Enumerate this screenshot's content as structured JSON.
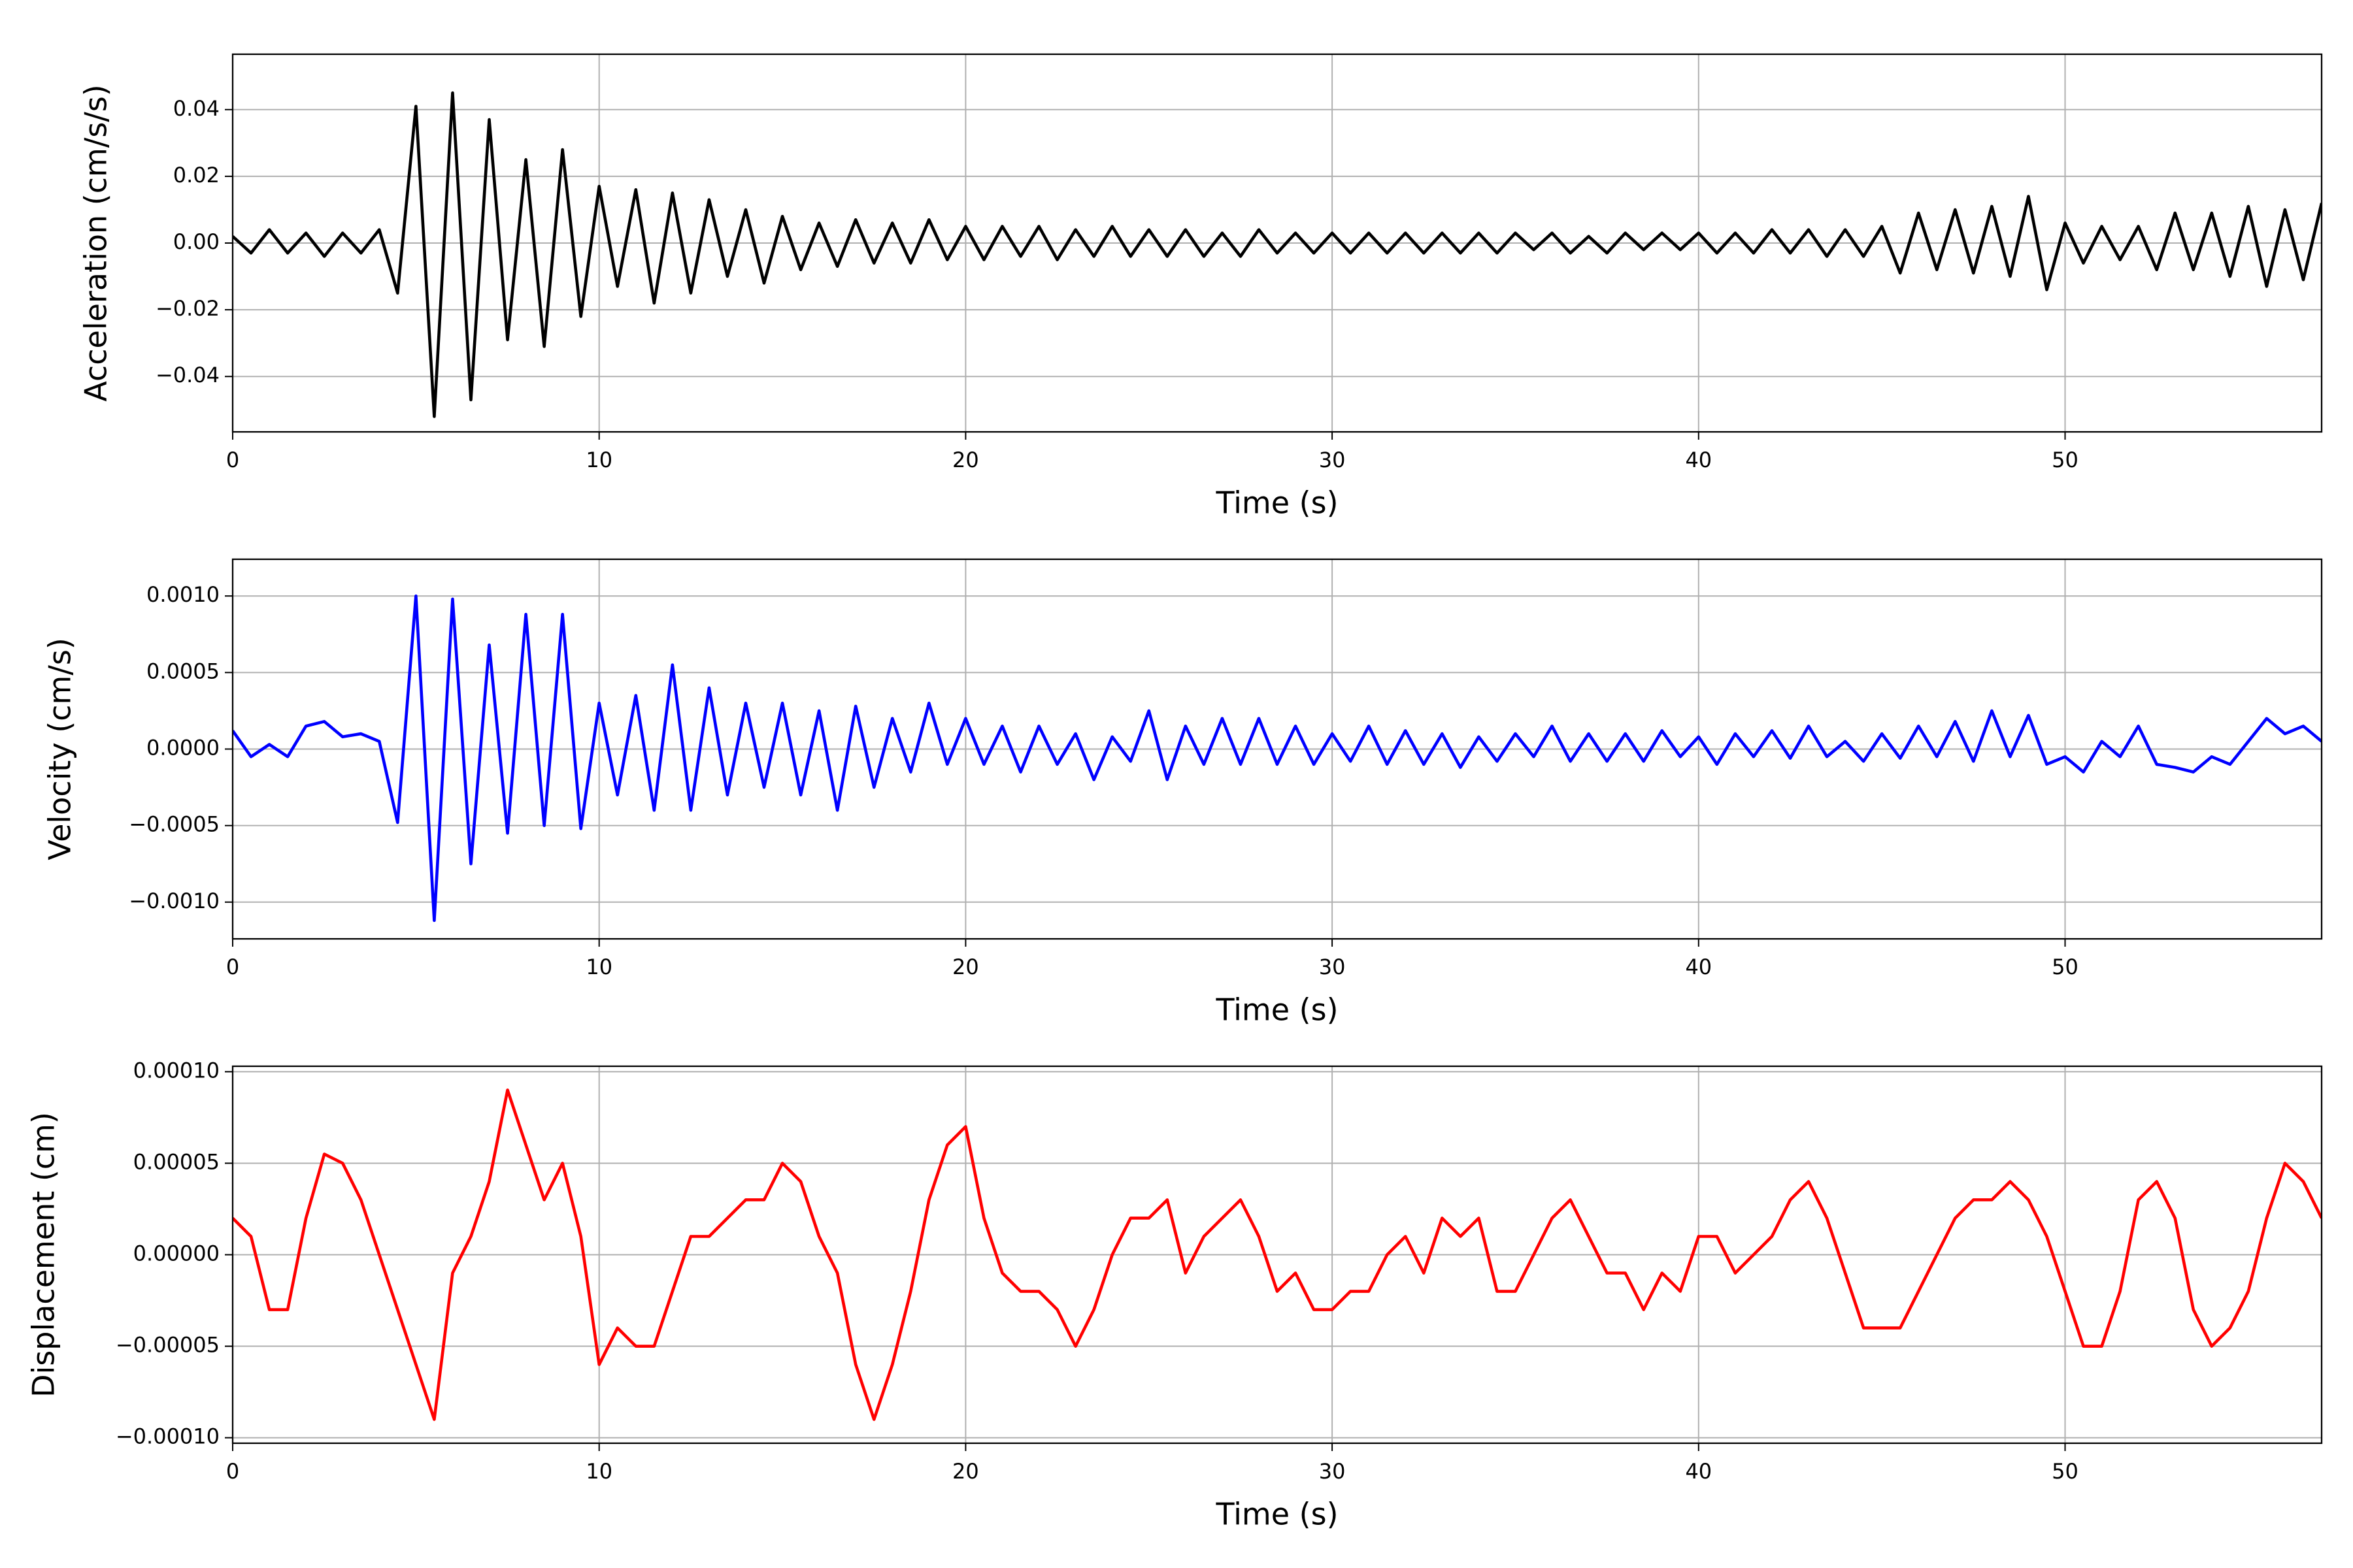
{
  "chart_data": [
    {
      "type": "line",
      "ylabel": "Acceleration (cm/s/s)",
      "xlabel": "Time (s)",
      "color": "#000000",
      "grid": true,
      "xlim": [
        0,
        57
      ],
      "xticks": [
        0,
        10,
        20,
        30,
        40,
        50
      ],
      "ylim": [
        -0.0566,
        0.0566
      ],
      "yticks": [
        {
          "value": -0.04,
          "label": "−0.04"
        },
        {
          "value": -0.02,
          "label": "−0.02"
        },
        {
          "value": 0,
          "label": "0.00"
        },
        0.02,
        0.04
      ],
      "x": [
        0,
        0.5,
        1,
        1.5,
        2,
        2.5,
        3,
        3.5,
        4,
        4.5,
        5,
        5.5,
        6,
        6.5,
        7,
        7.5,
        8,
        8.5,
        9,
        9.5,
        10,
        10.5,
        11,
        11.5,
        12,
        12.5,
        13,
        13.5,
        14,
        14.5,
        15,
        15.5,
        16,
        16.5,
        17,
        17.5,
        18,
        18.5,
        19,
        19.5,
        20,
        20.5,
        21,
        21.5,
        22,
        22.5,
        23,
        23.5,
        24,
        24.5,
        25,
        25.5,
        26,
        26.5,
        27,
        27.5,
        28,
        28.5,
        29,
        29.5,
        30,
        30.5,
        31,
        31.5,
        32,
        32.5,
        33,
        33.5,
        34,
        34.5,
        35,
        35.5,
        36,
        36.5,
        37,
        37.5,
        38,
        38.5,
        39,
        39.5,
        40,
        40.5,
        41,
        41.5,
        42,
        42.5,
        43,
        43.5,
        44,
        44.5,
        45,
        45.5,
        46,
        46.5,
        47,
        47.5,
        48,
        48.5,
        49,
        49.5,
        50,
        50.5,
        51,
        51.5,
        52,
        52.5,
        53,
        53.5,
        54,
        54.5,
        55,
        55.5,
        56,
        56.5,
        57
      ],
      "values": [
        0.002,
        -0.003,
        0.004,
        -0.003,
        0.003,
        -0.004,
        0.003,
        -0.003,
        0.004,
        -0.015,
        0.041,
        -0.052,
        0.045,
        -0.047,
        0.037,
        -0.029,
        0.025,
        -0.031,
        0.028,
        -0.022,
        0.017,
        -0.013,
        0.016,
        -0.018,
        0.015,
        -0.015,
        0.013,
        -0.01,
        0.01,
        -0.012,
        0.008,
        -0.008,
        0.006,
        -0.007,
        0.007,
        -0.006,
        0.006,
        -0.006,
        0.007,
        -0.005,
        0.005,
        -0.005,
        0.005,
        -0.004,
        0.005,
        -0.005,
        0.004,
        -0.004,
        0.005,
        -0.004,
        0.004,
        -0.004,
        0.004,
        -0.004,
        0.003,
        -0.004,
        0.004,
        -0.003,
        0.003,
        -0.003,
        0.003,
        -0.003,
        0.003,
        -0.003,
        0.003,
        -0.003,
        0.003,
        -0.003,
        0.003,
        -0.003,
        0.003,
        -0.002,
        0.003,
        -0.003,
        0.002,
        -0.003,
        0.003,
        -0.002,
        0.003,
        -0.002,
        0.003,
        -0.003,
        0.003,
        -0.003,
        0.004,
        -0.003,
        0.004,
        -0.004,
        0.004,
        -0.004,
        0.005,
        -0.009,
        0.009,
        -0.008,
        0.01,
        -0.009,
        0.011,
        -0.01,
        0.014,
        -0.014,
        0.006,
        -0.006,
        0.005,
        -0.005,
        0.005,
        -0.008,
        0.009,
        -0.008,
        0.009,
        -0.01,
        0.011,
        -0.013,
        0.01,
        -0.011,
        0.012
      ]
    },
    {
      "type": "line",
      "ylabel": "Velocity (cm/s)",
      "xlabel": "Time (s)",
      "color": "#0000ff",
      "grid": true,
      "xlim": [
        0,
        57
      ],
      "xticks": [
        0,
        10,
        20,
        30,
        40,
        50
      ],
      "ylim": [
        -0.00124,
        0.00124
      ],
      "yticks": [
        {
          "value": -0.001,
          "label": "−0.0010"
        },
        {
          "value": -0.0005,
          "label": "−0.0005"
        },
        {
          "value": 0,
          "label": "0.0000"
        },
        {
          "value": 0.0005,
          "label": "0.0005"
        },
        {
          "value": 0.001,
          "label": "0.0010"
        }
      ],
      "x": [
        0,
        0.5,
        1,
        1.5,
        2,
        2.5,
        3,
        3.5,
        4,
        4.5,
        5,
        5.5,
        6,
        6.5,
        7,
        7.5,
        8,
        8.5,
        9,
        9.5,
        10,
        10.5,
        11,
        11.5,
        12,
        12.5,
        13,
        13.5,
        14,
        14.5,
        15,
        15.5,
        16,
        16.5,
        17,
        17.5,
        18,
        18.5,
        19,
        19.5,
        20,
        20.5,
        21,
        21.5,
        22,
        22.5,
        23,
        23.5,
        24,
        24.5,
        25,
        25.5,
        26,
        26.5,
        27,
        27.5,
        28,
        28.5,
        29,
        29.5,
        30,
        30.5,
        31,
        31.5,
        32,
        32.5,
        33,
        33.5,
        34,
        34.5,
        35,
        35.5,
        36,
        36.5,
        37,
        37.5,
        38,
        38.5,
        39,
        39.5,
        40,
        40.5,
        41,
        41.5,
        42,
        42.5,
        43,
        43.5,
        44,
        44.5,
        45,
        45.5,
        46,
        46.5,
        47,
        47.5,
        48,
        48.5,
        49,
        49.5,
        50,
        50.5,
        51,
        51.5,
        52,
        52.5,
        53,
        53.5,
        54,
        54.5,
        55,
        55.5,
        56,
        56.5,
        57
      ],
      "values": [
        0.00012,
        -5e-05,
        3e-05,
        -5e-05,
        0.00015,
        0.00018,
        8e-05,
        0.0001,
        5e-05,
        -0.00048,
        0.001,
        -0.00112,
        0.00098,
        -0.00075,
        0.00068,
        -0.00055,
        0.00088,
        -0.0005,
        0.00088,
        -0.00052,
        0.0003,
        -0.0003,
        0.00035,
        -0.0004,
        0.00055,
        -0.0004,
        0.0004,
        -0.0003,
        0.0003,
        -0.00025,
        0.0003,
        -0.0003,
        0.00025,
        -0.0004,
        0.00028,
        -0.00025,
        0.0002,
        -0.00015,
        0.0003,
        -0.0001,
        0.0002,
        -0.0001,
        0.00015,
        -0.00015,
        0.00015,
        -0.0001,
        0.0001,
        -0.0002,
        8e-05,
        -8e-05,
        0.00025,
        -0.0002,
        0.00015,
        -0.0001,
        0.0002,
        -0.0001,
        0.0002,
        -0.0001,
        0.00015,
        -0.0001,
        0.0001,
        -8e-05,
        0.00015,
        -0.0001,
        0.00012,
        -0.0001,
        0.0001,
        -0.00012,
        8e-05,
        -8e-05,
        0.0001,
        -5e-05,
        0.00015,
        -8e-05,
        0.0001,
        -8e-05,
        0.0001,
        -8e-05,
        0.00012,
        -5e-05,
        8e-05,
        -0.0001,
        0.0001,
        -5e-05,
        0.00012,
        -6e-05,
        0.00015,
        -5e-05,
        5e-05,
        -8e-05,
        0.0001,
        -6e-05,
        0.00015,
        -5e-05,
        0.00018,
        -8e-05,
        0.00025,
        -5e-05,
        0.00022,
        -0.0001,
        -5e-05,
        -0.00015,
        5e-05,
        -5e-05,
        0.00015,
        -0.0001,
        -0.00012,
        -0.00015,
        -5e-05,
        -0.0001,
        5e-05,
        0.0002,
        0.0001,
        0.00015,
        5e-05
      ]
    },
    {
      "type": "line",
      "ylabel": "Displacement (cm)",
      "xlabel": "Time (s)",
      "color": "#ff0000",
      "grid": true,
      "xlim": [
        0,
        57
      ],
      "xticks": [
        0,
        10,
        20,
        30,
        40,
        50
      ],
      "ylim": [
        -0.000103,
        0.000103
      ],
      "yticks": [
        {
          "value": -0.0001,
          "label": "−0.00010"
        },
        {
          "value": -5e-05,
          "label": "−0.00005"
        },
        {
          "value": 0,
          "label": "0.00000"
        },
        {
          "value": 5e-05,
          "label": "0.00005"
        },
        {
          "value": 0.0001,
          "label": "0.00010"
        }
      ],
      "x": [
        0,
        0.5,
        1,
        1.5,
        2,
        2.5,
        3,
        3.5,
        4,
        4.5,
        5,
        5.5,
        6,
        6.5,
        7,
        7.5,
        8,
        8.5,
        9,
        9.5,
        10,
        10.5,
        11,
        11.5,
        12,
        12.5,
        13,
        13.5,
        14,
        14.5,
        15,
        15.5,
        16,
        16.5,
        17,
        17.5,
        18,
        18.5,
        19,
        19.5,
        20,
        20.5,
        21,
        21.5,
        22,
        22.5,
        23,
        23.5,
        24,
        24.5,
        25,
        25.5,
        26,
        26.5,
        27,
        27.5,
        28,
        28.5,
        29,
        29.5,
        30,
        30.5,
        31,
        31.5,
        32,
        32.5,
        33,
        33.5,
        34,
        34.5,
        35,
        35.5,
        36,
        36.5,
        37,
        37.5,
        38,
        38.5,
        39,
        39.5,
        40,
        40.5,
        41,
        41.5,
        42,
        42.5,
        43,
        43.5,
        44,
        44.5,
        45,
        45.5,
        46,
        46.5,
        47,
        47.5,
        48,
        48.5,
        49,
        49.5,
        50,
        50.5,
        51,
        51.5,
        52,
        52.5,
        53,
        53.5,
        54,
        54.5,
        55,
        55.5,
        56,
        56.5,
        57
      ],
      "values": [
        2e-05,
        1e-05,
        -3e-05,
        -3e-05,
        2e-05,
        5.5e-05,
        5e-05,
        3e-05,
        0,
        -3e-05,
        -6e-05,
        -9e-05,
        -1e-05,
        1e-05,
        4e-05,
        9e-05,
        6e-05,
        3e-05,
        5e-05,
        1e-05,
        -6e-05,
        -4e-05,
        -5e-05,
        -5e-05,
        -2e-05,
        1e-05,
        1e-05,
        2e-05,
        3e-05,
        3e-05,
        5e-05,
        4e-05,
        1e-05,
        -1e-05,
        -6e-05,
        -9e-05,
        -6e-05,
        -2e-05,
        3e-05,
        6e-05,
        7e-05,
        2e-05,
        -1e-05,
        -2e-05,
        -2e-05,
        -3e-05,
        -5e-05,
        -3e-05,
        0,
        2e-05,
        2e-05,
        3e-05,
        -1e-05,
        1e-05,
        2e-05,
        3e-05,
        1e-05,
        -2e-05,
        -1e-05,
        -3e-05,
        -3e-05,
        -2e-05,
        -2e-05,
        0,
        1e-05,
        -1e-05,
        2e-05,
        1e-05,
        2e-05,
        -2e-05,
        -2e-05,
        0,
        2e-05,
        3e-05,
        1e-05,
        -1e-05,
        -1e-05,
        -3e-05,
        -1e-05,
        -2e-05,
        1e-05,
        1e-05,
        -1e-05,
        0,
        1e-05,
        3e-05,
        4e-05,
        2e-05,
        -1e-05,
        -4e-05,
        -4e-05,
        -4e-05,
        -2e-05,
        0,
        2e-05,
        3e-05,
        3e-05,
        4e-05,
        3e-05,
        1e-05,
        -2e-05,
        -5e-05,
        -5e-05,
        -2e-05,
        3e-05,
        4e-05,
        2e-05,
        -3e-05,
        -5e-05,
        -4e-05,
        -2e-05,
        2e-05,
        5e-05,
        4e-05,
        2e-05
      ]
    }
  ]
}
